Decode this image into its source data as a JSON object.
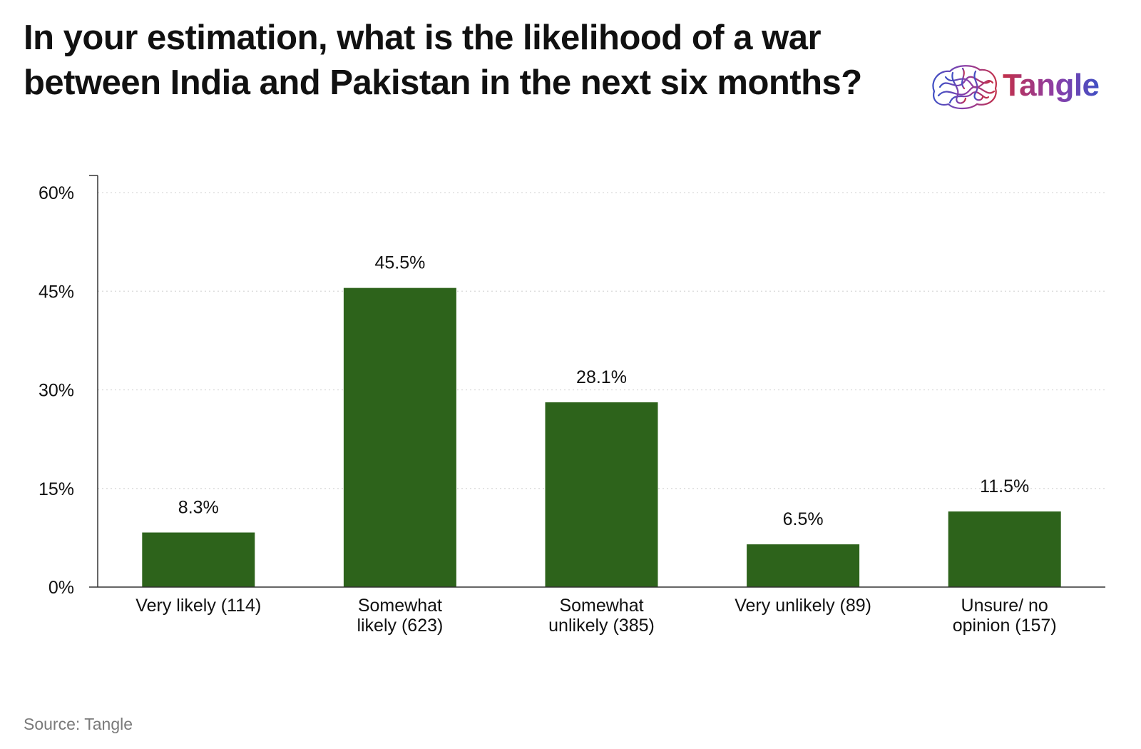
{
  "title": "In your estimation, what is the likelihood of a war between India and Pakistan in the next six months?",
  "logo": {
    "wordmark": "Tangle",
    "icon": "tangled-brain-icon"
  },
  "source": "Source: Tangle",
  "colors": {
    "bar": "#2d631b",
    "axis": "#333333",
    "gridline": "#d9d9d9",
    "text": "#111111",
    "muted": "#7a7a7a"
  },
  "chart_data": {
    "type": "bar",
    "categories": [
      [
        "Very likely (114)"
      ],
      [
        "Somewhat",
        "likely (623)"
      ],
      [
        "Somewhat",
        "unlikely (385)"
      ],
      [
        "Very unlikely (89)"
      ],
      [
        "Unsure/ no",
        "opinion (157)"
      ]
    ],
    "values": [
      8.3,
      45.5,
      28.1,
      6.5,
      11.5
    ],
    "value_labels": [
      "8.3%",
      "45.5%",
      "28.1%",
      "6.5%",
      "11.5%"
    ],
    "y_ticks": [
      0,
      15,
      30,
      45,
      60
    ],
    "y_tick_labels": [
      "0%",
      "15%",
      "30%",
      "45%",
      "60%"
    ],
    "ylim": [
      0,
      60
    ],
    "grid": "dotted horizontal",
    "xlabel": "",
    "ylabel": ""
  }
}
